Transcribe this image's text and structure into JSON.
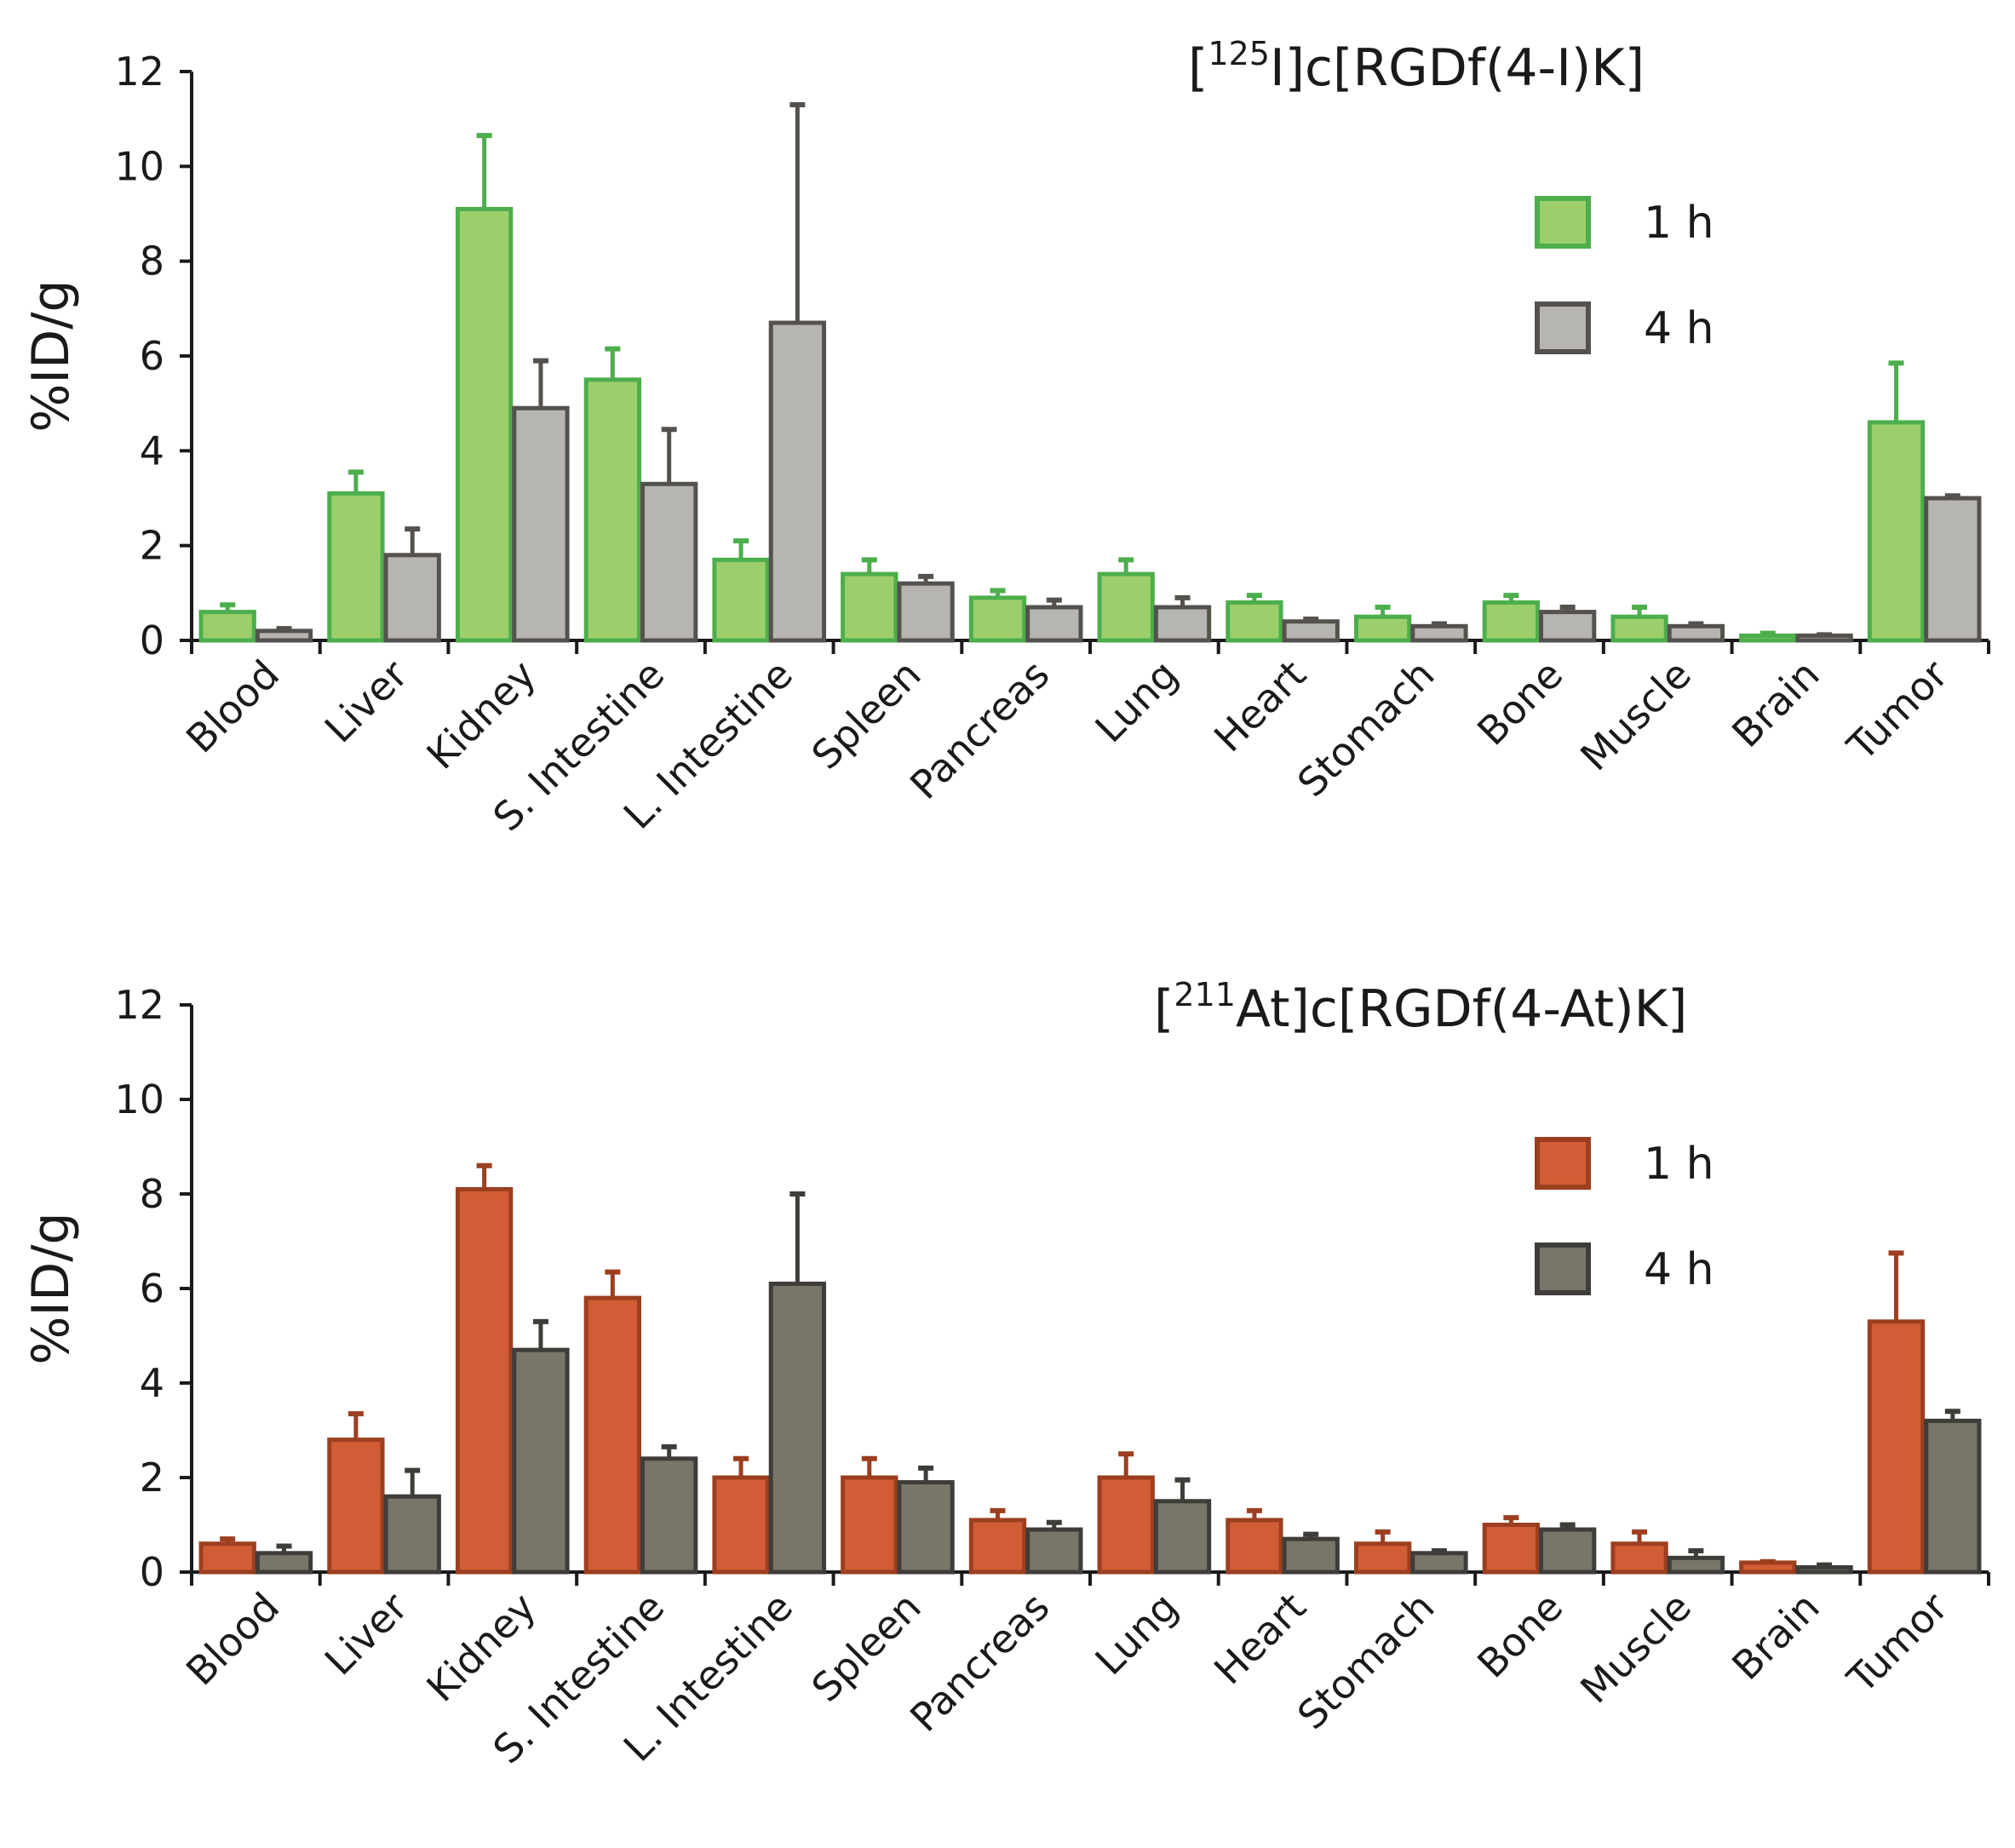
{
  "chart_data": [
    {
      "type": "bar",
      "title_prefix": "[",
      "title_sup": "125",
      "title_suffix": "I]c[RGDf(4-I)K]",
      "xlabel": "",
      "ylabel": "%ID/g",
      "ylim": [
        0,
        12
      ],
      "yticks": [
        "0",
        "2",
        "4",
        "6",
        "8",
        "10",
        "12"
      ],
      "legend_position": "top-right",
      "categories": [
        "Blood",
        "Liver",
        "Kidney",
        "S. Intestine",
        "L. Intestine",
        "Spleen",
        "Pancreas",
        "Lung",
        "Heart",
        "Stomach",
        "Bone",
        "Muscle",
        "Brain",
        "Tumor"
      ],
      "series": [
        {
          "name": "1 h",
          "fill": "#9ccf6b",
          "stroke": "#4cae4c",
          "values": [
            0.6,
            3.1,
            9.1,
            5.5,
            1.7,
            1.4,
            0.9,
            1.4,
            0.8,
            0.5,
            0.8,
            0.5,
            0.1,
            4.6
          ],
          "errors": [
            0.15,
            0.45,
            1.55,
            0.65,
            0.4,
            0.3,
            0.15,
            0.3,
            0.15,
            0.2,
            0.15,
            0.2,
            0.05,
            1.25
          ]
        },
        {
          "name": "4 h",
          "fill": "#b7b5b1",
          "stroke": "#55524e",
          "values": [
            0.2,
            1.8,
            4.9,
            3.3,
            6.7,
            1.2,
            0.7,
            0.7,
            0.4,
            0.3,
            0.6,
            0.3,
            0.1,
            3.0
          ],
          "errors": [
            0.05,
            0.55,
            1.0,
            1.15,
            4.6,
            0.15,
            0.15,
            0.2,
            0.05,
            0.05,
            0.1,
            0.05,
            0.02,
            0.05
          ]
        }
      ]
    },
    {
      "type": "bar",
      "title_prefix": "[",
      "title_sup": "211",
      "title_suffix": "At]c[RGDf(4-At)K]",
      "xlabel": "",
      "ylabel": "%ID/g",
      "ylim": [
        0,
        12
      ],
      "yticks": [
        "0",
        "2",
        "4",
        "6",
        "8",
        "10",
        "12"
      ],
      "legend_position": "top-right",
      "categories": [
        "Blood",
        "Liver",
        "Kidney",
        "S. Intestine",
        "L. Intestine",
        "Spleen",
        "Pancreas",
        "Lung",
        "Heart",
        "Stomach",
        "Bone",
        "Muscle",
        "Brain",
        "Tumor"
      ],
      "series": [
        {
          "name": "1 h",
          "fill": "#d05d35",
          "stroke": "#9c3f20",
          "values": [
            0.6,
            2.8,
            8.1,
            5.8,
            2.0,
            2.0,
            1.1,
            2.0,
            1.1,
            0.6,
            1.0,
            0.6,
            0.2,
            5.3
          ],
          "errors": [
            0.1,
            0.55,
            0.5,
            0.55,
            0.4,
            0.4,
            0.2,
            0.5,
            0.2,
            0.25,
            0.15,
            0.25,
            0.02,
            1.45
          ]
        },
        {
          "name": "4 h",
          "fill": "#797569",
          "stroke": "#3f3d39",
          "values": [
            0.4,
            1.6,
            4.7,
            2.4,
            6.1,
            1.9,
            0.9,
            1.5,
            0.7,
            0.4,
            0.9,
            0.3,
            0.1,
            3.2
          ],
          "errors": [
            0.15,
            0.55,
            0.6,
            0.25,
            1.9,
            0.3,
            0.15,
            0.45,
            0.1,
            0.05,
            0.1,
            0.15,
            0.05,
            0.2
          ]
        }
      ]
    }
  ]
}
